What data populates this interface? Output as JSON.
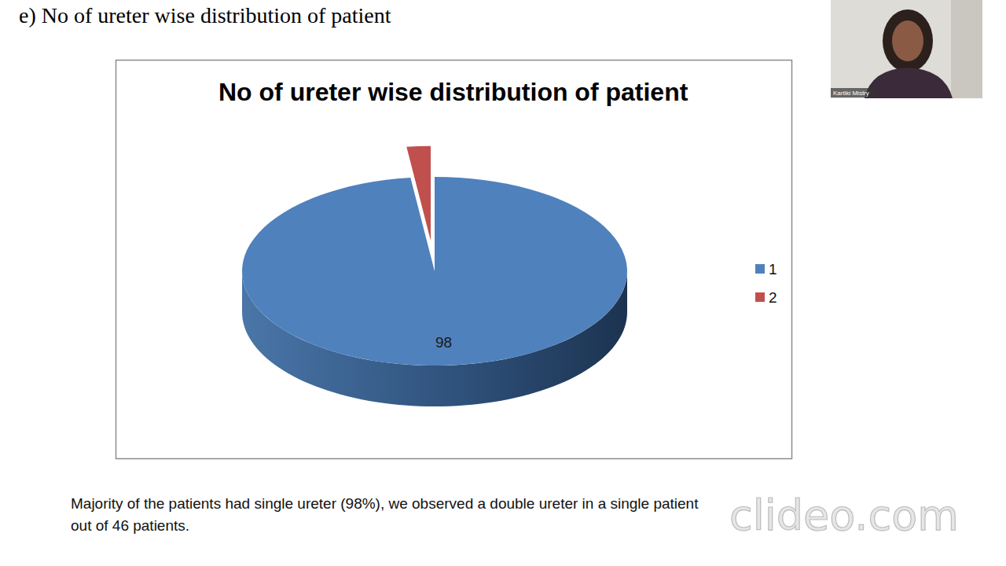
{
  "heading": "e) No of ureter wise distribution of patient",
  "chart_data": {
    "type": "pie",
    "title": "No of ureter wise distribution of patient",
    "categories": [
      "1",
      "2"
    ],
    "values": [
      98,
      2
    ],
    "colors": [
      "#4f81bd",
      "#c0504d"
    ],
    "data_labels": true,
    "value_labels": [
      "98",
      null
    ],
    "legend": "right"
  },
  "caption": "Majority of the patients had single ureter (98%), we observed a double ureter in a single patient out of 46 patients.",
  "speaker": "Kartiki Mistry",
  "watermark": "clideo.com"
}
